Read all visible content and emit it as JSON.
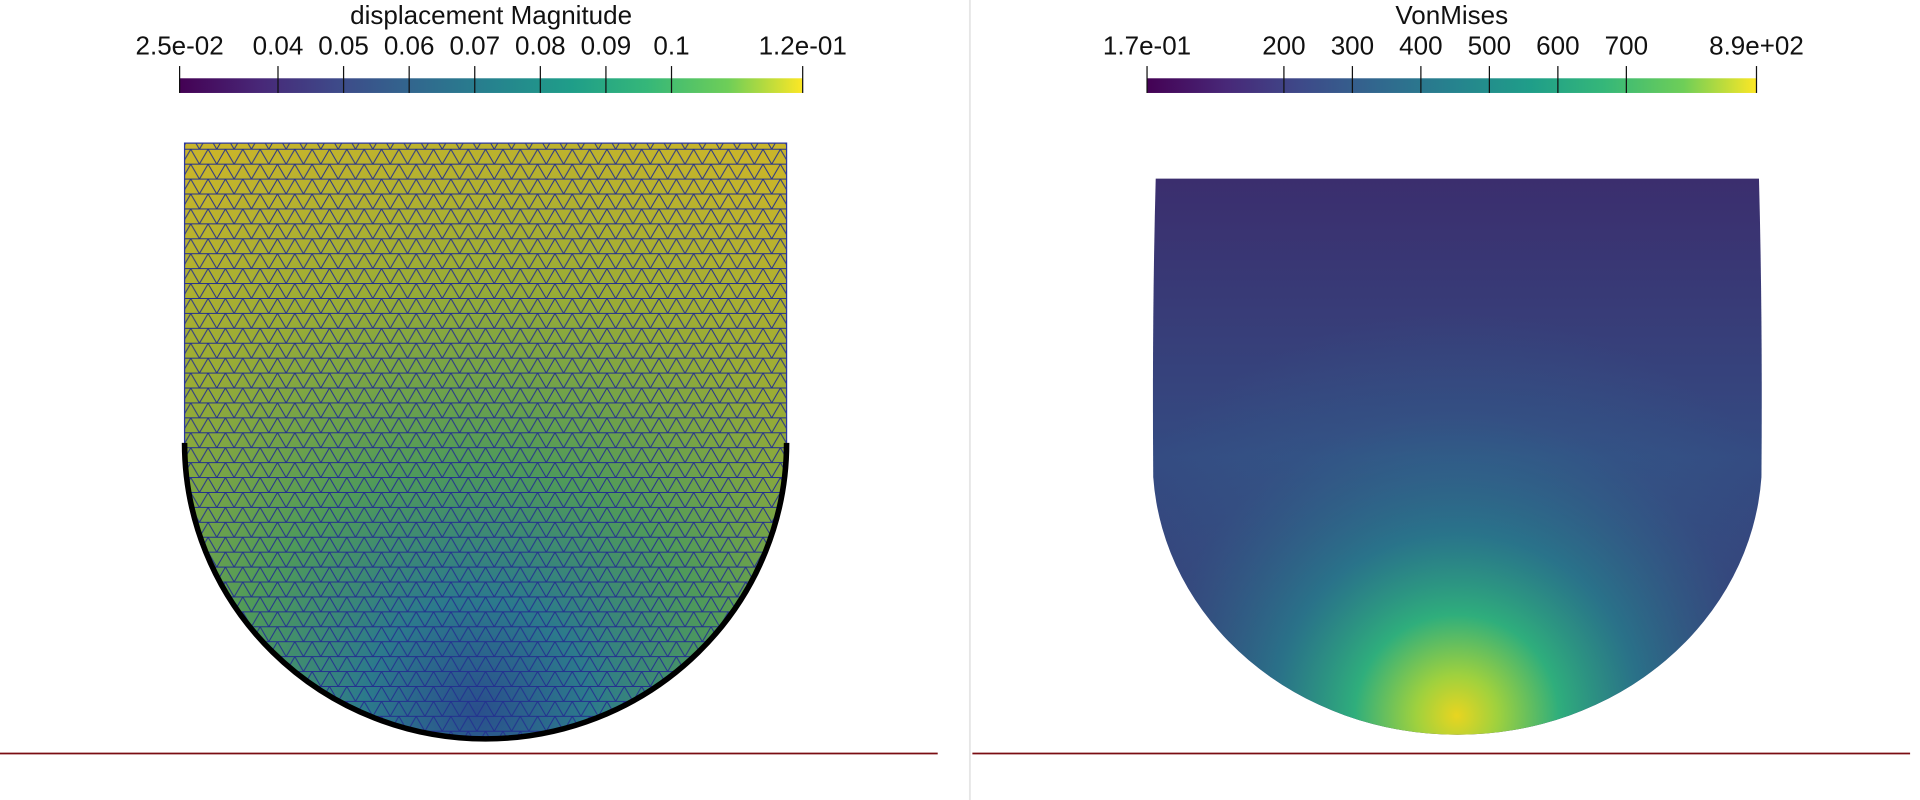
{
  "panels": [
    {
      "colorbar": {
        "title": "displacement Magnitude",
        "range": [
          0.025,
          0.12
        ],
        "ticks": [
          {
            "value": 0.025,
            "label": "2.5e-02"
          },
          0.04,
          0.05,
          0.06,
          0.07,
          0.08,
          0.09,
          0.1,
          {
            "value": 0.12,
            "label": "1.2e-01"
          }
        ]
      }
    },
    {
      "colorbar": {
        "title": "VonMises",
        "range": [
          0.17,
          890
        ],
        "ticks": [
          {
            "value": 0.17,
            "label": "1.7e-01"
          },
          200,
          300,
          400,
          500,
          600,
          700,
          {
            "value": 890,
            "label": "8.9e+02"
          }
        ]
      }
    }
  ]
}
